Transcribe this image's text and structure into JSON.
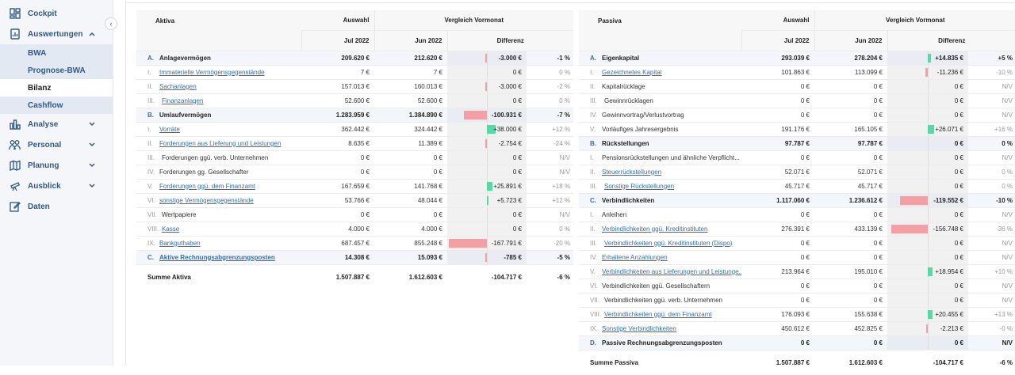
{
  "sidebar": {
    "items": [
      {
        "label": "Cockpit",
        "icon": "dashboard-icon"
      },
      {
        "label": "Auswertungen",
        "icon": "report-icon",
        "expanded": true,
        "children": [
          "BWA",
          "Prognose-BWA",
          "Bilanz",
          "Cashflow"
        ],
        "active_child": "Bilanz"
      },
      {
        "label": "Analyse",
        "icon": "chart-icon"
      },
      {
        "label": "Personal",
        "icon": "people-icon"
      },
      {
        "label": "Planung",
        "icon": "map-icon"
      },
      {
        "label": "Ausblick",
        "icon": "telescope-icon"
      },
      {
        "label": "Daten",
        "icon": "edit-icon"
      }
    ],
    "collapse_glyph": "‹"
  },
  "aktiva": {
    "header": {
      "title": "Aktiva",
      "auswahl": "Auswahl",
      "vergleich": "Vergleich Vormonat",
      "jul": "Jul 2022",
      "jun": "Jun 2022",
      "diff": "Differenz"
    },
    "rows": [
      {
        "roman": "A.",
        "label": "Anlagevermögen",
        "group": true,
        "link": false,
        "jul": "209.620 €",
        "jun": "212.620 €",
        "diff": "-3.000 €",
        "diffval": -3000,
        "pct": "-1 %"
      },
      {
        "roman": "I.",
        "label": "Immaterielle Vermögensgegenstände",
        "group": false,
        "link": true,
        "jul": "7 €",
        "jun": "7 €",
        "diff": "0 €",
        "diffval": 0,
        "pct": "0 %"
      },
      {
        "roman": "II.",
        "label": "Sachanlagen",
        "group": false,
        "link": true,
        "jul": "157.013 €",
        "jun": "160.013 €",
        "diff": "-3.000 €",
        "diffval": -3000,
        "pct": "-2 %"
      },
      {
        "roman": "III.",
        "label": "Finanzanlagen",
        "group": false,
        "link": true,
        "jul": "52.600 €",
        "jun": "52.600 €",
        "diff": "0 €",
        "diffval": 0,
        "pct": "0 %"
      },
      {
        "roman": "B.",
        "label": "Umlaufvermögen",
        "group": true,
        "link": false,
        "jul": "1.283.959 €",
        "jun": "1.384.890 €",
        "diff": "-100.931 €",
        "diffval": -100931,
        "pct": "-7 %"
      },
      {
        "roman": "I.",
        "label": "Vorräte",
        "group": false,
        "link": true,
        "jul": "362.442 €",
        "jun": "324.442 €",
        "diff": "+38.000 €",
        "diffval": 38000,
        "pct": "+12 %"
      },
      {
        "roman": "II.",
        "label": "Forderungen aus Lieferung und Leistungen",
        "group": false,
        "link": true,
        "jul": "8.635 €",
        "jun": "11.389 €",
        "diff": "-2.754 €",
        "diffval": -2754,
        "pct": "-24 %"
      },
      {
        "roman": "III.",
        "label": "Forderungen ggü. verb. Unternehmen",
        "group": false,
        "link": false,
        "jul": "0 €",
        "jun": "0 €",
        "diff": "0 €",
        "diffval": 0,
        "pct": "N/V"
      },
      {
        "roman": "IV.",
        "label": "Forderungen gg. Gesellschafter",
        "group": false,
        "link": false,
        "jul": "0 €",
        "jun": "0 €",
        "diff": "0 €",
        "diffval": 0,
        "pct": "N/V"
      },
      {
        "roman": "V.",
        "label": "Forderungen ggü. dem Finanzamt",
        "group": false,
        "link": true,
        "jul": "167.659 €",
        "jun": "141.768 €",
        "diff": "+25.891 €",
        "diffval": 25891,
        "pct": "+18 %"
      },
      {
        "roman": "VI.",
        "label": "sonstige Vermögensgegenstände",
        "group": false,
        "link": true,
        "jul": "53.766 €",
        "jun": "48.044 €",
        "diff": "+5.723 €",
        "diffval": 5723,
        "pct": "+12 %"
      },
      {
        "roman": "VII.",
        "label": "Wertpapiere",
        "group": false,
        "link": false,
        "jul": "0 €",
        "jun": "0 €",
        "diff": "0 €",
        "diffval": 0,
        "pct": "N/V"
      },
      {
        "roman": "VIII.",
        "label": "Kasse",
        "group": false,
        "link": true,
        "jul": "4.000 €",
        "jun": "4.000 €",
        "diff": "0 €",
        "diffval": 0,
        "pct": "0 %"
      },
      {
        "roman": "IX.",
        "label": "Bankguthaben",
        "group": false,
        "link": true,
        "jul": "687.457 €",
        "jun": "855.248 €",
        "diff": "-167.791 €",
        "diffval": -167791,
        "pct": "-20 %"
      },
      {
        "roman": "C.",
        "label": "Aktive Rechnungsabgrenzungsposten",
        "group": true,
        "link": true,
        "jul": "14.308 €",
        "jun": "15.093 €",
        "diff": "-785 €",
        "diffval": -785,
        "pct": "-5 %"
      }
    ],
    "sum": {
      "label": "Summe Aktiva",
      "jul": "1.507.887 €",
      "jun": "1.612.603 €",
      "diff": "-104.717 €",
      "pct": "-6 %"
    }
  },
  "passiva": {
    "header": {
      "title": "Passiva",
      "auswahl": "Auswahl",
      "vergleich": "Vergleich Vormonat",
      "jul": "Jul 2022",
      "jun": "Jun 2022",
      "diff": "Differenz"
    },
    "rows": [
      {
        "roman": "A.",
        "label": "Eigenkapital",
        "group": true,
        "link": false,
        "jul": "293.039 €",
        "jun": "278.204 €",
        "diff": "+14.835 €",
        "diffval": 14835,
        "pct": "+5 %"
      },
      {
        "roman": "I.",
        "label": "Gezeichnetes Kapital",
        "group": false,
        "link": true,
        "jul": "101.863 €",
        "jun": "113.099 €",
        "diff": "-11.236 €",
        "diffval": -11236,
        "pct": "-10 %"
      },
      {
        "roman": "II.",
        "label": "Kapitalrücklage",
        "group": false,
        "link": false,
        "jul": "0 €",
        "jun": "0 €",
        "diff": "0 €",
        "diffval": 0,
        "pct": "N/V"
      },
      {
        "roman": "III.",
        "label": "Gewinnrücklagen",
        "group": false,
        "link": false,
        "jul": "0 €",
        "jun": "0 €",
        "diff": "0 €",
        "diffval": 0,
        "pct": "N/V"
      },
      {
        "roman": "IV.",
        "label": "Gewinnvortrag/Verlustvortrag",
        "group": false,
        "link": false,
        "jul": "0 €",
        "jun": "0 €",
        "diff": "0 €",
        "diffval": 0,
        "pct": "N/V"
      },
      {
        "roman": "V.",
        "label": "Vorläufiges Jahresergebnis",
        "group": false,
        "link": false,
        "jul": "191.176 €",
        "jun": "165.105 €",
        "diff": "+26.071 €",
        "diffval": 26071,
        "pct": "+16 %"
      },
      {
        "roman": "B.",
        "label": "Rückstellungen",
        "group": true,
        "link": false,
        "jul": "97.787 €",
        "jun": "97.787 €",
        "diff": "0 €",
        "diffval": 0,
        "pct": "0 %"
      },
      {
        "roman": "I.",
        "label": "Pensionsrückstellungen und ähnliche Verpflicht...",
        "group": false,
        "link": false,
        "jul": "0 €",
        "jun": "0 €",
        "diff": "0 €",
        "diffval": 0,
        "pct": "N/V"
      },
      {
        "roman": "II.",
        "label": "Steuerrückstellungen",
        "group": false,
        "link": true,
        "jul": "52.071 €",
        "jun": "52.071 €",
        "diff": "0 €",
        "diffval": 0,
        "pct": "0 %"
      },
      {
        "roman": "III.",
        "label": "Sonstige Rückstellungen",
        "group": false,
        "link": true,
        "jul": "45.717 €",
        "jun": "45.717 €",
        "diff": "0 €",
        "diffval": 0,
        "pct": "0 %"
      },
      {
        "roman": "C.",
        "label": "Verbindlichkeiten",
        "group": true,
        "link": false,
        "jul": "1.117.060 €",
        "jun": "1.236.612 €",
        "diff": "-119.552 €",
        "diffval": -119552,
        "pct": "-10 %"
      },
      {
        "roman": "I.",
        "label": "Anleihen",
        "group": false,
        "link": false,
        "jul": "0 €",
        "jun": "0 €",
        "diff": "0 €",
        "diffval": 0,
        "pct": "N/V"
      },
      {
        "roman": "II.",
        "label": "Verbindlichkeiten ggü. Kreditinstituten",
        "group": false,
        "link": true,
        "jul": "276.391 €",
        "jun": "433.139 €",
        "diff": "-156.748 €",
        "diffval": -156748,
        "pct": "-36 %"
      },
      {
        "roman": "III.",
        "label": "Verbindlichkeiten ggü. Kreditinstituten (Dispo)",
        "group": false,
        "link": true,
        "jul": "0 €",
        "jun": "0 €",
        "diff": "0 €",
        "diffval": 0,
        "pct": "N/V"
      },
      {
        "roman": "IV.",
        "label": "Erhaltene Anzahlungen",
        "group": false,
        "link": true,
        "jul": "0 €",
        "jun": "0 €",
        "diff": "0 €",
        "diffval": 0,
        "pct": "N/V"
      },
      {
        "roman": "V.",
        "label": "Verbindlichkeiten aus Lieferungen und Leistunge...",
        "group": false,
        "link": true,
        "jul": "213.964 €",
        "jun": "195.010 €",
        "diff": "+18.954 €",
        "diffval": 18954,
        "pct": "+10 %"
      },
      {
        "roman": "VI.",
        "label": "Verbindlichkeiten ggü. Gesellschaftern",
        "group": false,
        "link": false,
        "jul": "0 €",
        "jun": "0 €",
        "diff": "0 €",
        "diffval": 0,
        "pct": "N/V"
      },
      {
        "roman": "VII.",
        "label": "Verbindlichkeiten ggü. verb. Unternehmen",
        "group": false,
        "link": false,
        "jul": "0 €",
        "jun": "0 €",
        "diff": "0 €",
        "diffval": 0,
        "pct": "N/V"
      },
      {
        "roman": "VIII.",
        "label": "Verbindlichkeiten ggü. dem Finanzamt",
        "group": false,
        "link": true,
        "jul": "176.093 €",
        "jun": "155.638 €",
        "diff": "+20.455 €",
        "diffval": 20455,
        "pct": "+13 %"
      },
      {
        "roman": "IX.",
        "label": "Sonstige Verbindlichkeiten",
        "group": false,
        "link": true,
        "jul": "450.612 €",
        "jun": "452.825 €",
        "diff": "-2.213 €",
        "diffval": -2213,
        "pct": "-0 %"
      },
      {
        "roman": "D.",
        "label": "Passive Rechnungsabgrenzungsposten",
        "group": true,
        "link": false,
        "jul": "0 €",
        "jun": "0 €",
        "diff": "0 €",
        "diffval": 0,
        "pct": "N/V"
      }
    ],
    "sum": {
      "label": "Summe Passiva",
      "jul": "1.507.887 €",
      "jun": "1.612.603 €",
      "diff": "-104.717 €",
      "pct": "-6 %"
    }
  },
  "colors": {
    "positive_bar": "#5bd6a4",
    "negative_bar": "#f3a0a4",
    "link": "#2d6fb6",
    "nav": "#2d5b8c"
  }
}
